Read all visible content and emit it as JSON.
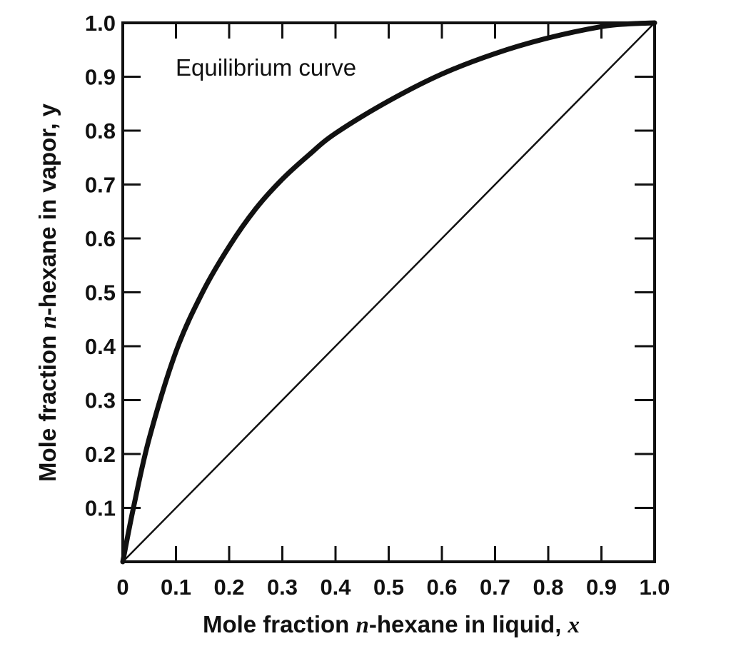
{
  "chart_data": {
    "type": "line",
    "title": "",
    "xlabel": {
      "prefix": "Mole fraction ",
      "var": "n",
      "middle": "-hexane in liquid, ",
      "symbol": "x"
    },
    "ylabel": {
      "prefix": "Mole fraction ",
      "var": "n",
      "middle": "-hexane in vapor, y"
    },
    "xlim": [
      0,
      1.0
    ],
    "ylim": [
      0,
      1.0
    ],
    "x_ticks": [
      "0",
      "0.1",
      "0.2",
      "0.3",
      "0.4",
      "0.5",
      "0.6",
      "0.7",
      "0.8",
      "0.9",
      "1.0"
    ],
    "y_ticks": [
      "0.1",
      "0.2",
      "0.3",
      "0.4",
      "0.5",
      "0.6",
      "0.7",
      "0.8",
      "0.9",
      "1.0"
    ],
    "grid": false,
    "annotation": "Equilibrium curve",
    "series": [
      {
        "style": "thick",
        "x": [
          0,
          0.02,
          0.05,
          0.1,
          0.15,
          0.2,
          0.25,
          0.3,
          0.35,
          0.4,
          0.5,
          0.6,
          0.7,
          0.8,
          0.9,
          0.95,
          1.0
        ],
        "y": [
          0,
          0.1,
          0.23,
          0.39,
          0.5,
          0.585,
          0.655,
          0.71,
          0.755,
          0.795,
          0.855,
          0.905,
          0.943,
          0.972,
          0.993,
          0.998,
          1.0
        ]
      },
      {
        "style": "thin",
        "x": [
          0,
          1.0
        ],
        "y": [
          0,
          1.0
        ]
      }
    ],
    "colors": {
      "ink": "#111111",
      "background": "#ffffff"
    }
  }
}
